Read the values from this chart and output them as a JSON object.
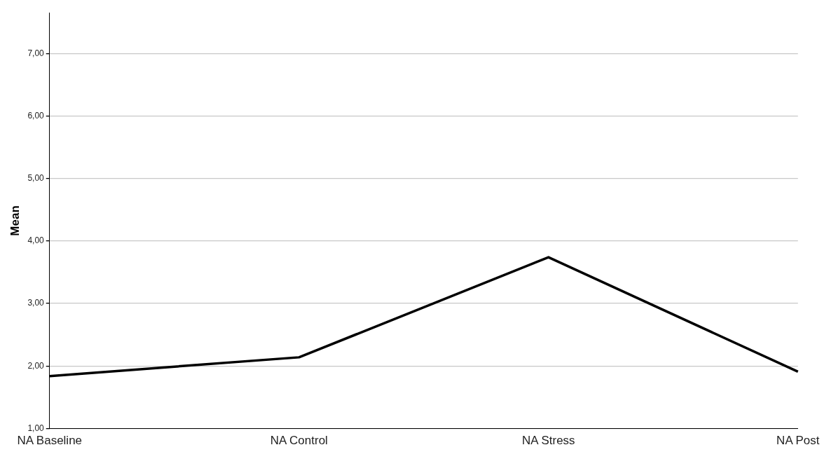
{
  "chart_data": {
    "type": "line",
    "ylabel": "Mean",
    "categories": [
      "NA Baseline",
      "NA Control",
      "NA Stress",
      "NA Post"
    ],
    "series": [
      {
        "color": "#000000",
        "values": [
          1.84,
          2.14,
          3.74,
          1.91
        ]
      }
    ],
    "ylim": [
      1,
      7.65
    ],
    "yticks": [
      {
        "value": 1,
        "label": "1,00"
      },
      {
        "value": 2,
        "label": "2,00"
      },
      {
        "value": 3,
        "label": "3,00"
      },
      {
        "value": 4,
        "label": "4,00"
      },
      {
        "value": 5,
        "label": "5,00"
      },
      {
        "value": 6,
        "label": "6,00"
      },
      {
        "value": 7,
        "label": "7,00"
      }
    ],
    "grid": "y",
    "legend": false,
    "marker": "none",
    "line_style": "solid"
  }
}
